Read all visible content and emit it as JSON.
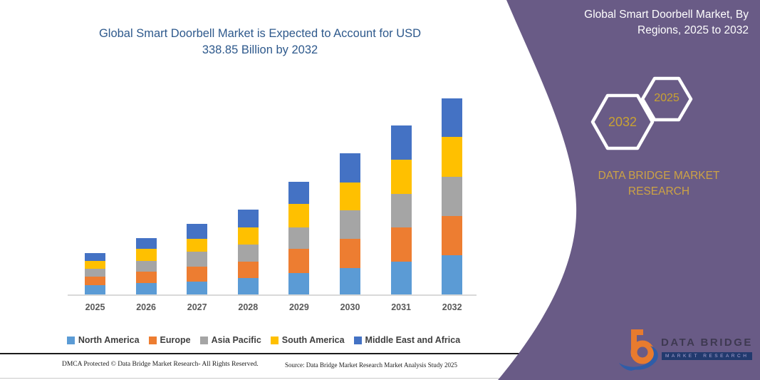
{
  "left": {
    "title_line1": "Global Smart Doorbell Market is Expected to Account for USD",
    "title_line2": "338.85 Billion by 2032",
    "footer_dmca": "DMCA Protected © Data Bridge Market Research-  All Rights Reserved.",
    "footer_source": "Source: Data Bridge Market Research  Market Analysis Study 2025"
  },
  "right_panel": {
    "title_line1": "Global Smart Doorbell Market, By",
    "title_line2": "Regions, 2025 to 2032",
    "hexagons": [
      {
        "label": "2032"
      },
      {
        "label": "2025"
      }
    ],
    "brand_line1": "DATA BRIDGE MARKET",
    "brand_line2": "RESEARCH",
    "logo_name": "DATA BRIDGE",
    "logo_sub": "MARKET RESEARCH",
    "colors": {
      "panel": "#695B86",
      "gold": "#C9A232",
      "title": "#FFFFFF"
    }
  },
  "chart_data": {
    "type": "bar",
    "stacked": true,
    "title": "Global Smart Doorbell Market is Expected to Account for USD 338.85 Billion by 2032",
    "unit": "USD Billion",
    "categories": [
      "2025",
      "2026",
      "2027",
      "2028",
      "2029",
      "2030",
      "2031",
      "2032"
    ],
    "series": [
      {
        "name": "North America",
        "color": "#5B9BD5",
        "values": [
          17.2,
          20.9,
          23.3,
          29.5,
          38.1,
          46.7,
          57.7,
          68.8
        ]
      },
      {
        "name": "Europe",
        "color": "#ED7D31",
        "values": [
          14.7,
          19.6,
          25.8,
          28.2,
          41.7,
          50.3,
          58.9,
          67.5
        ]
      },
      {
        "name": "Asia Pacific",
        "color": "#A5A5A5",
        "values": [
          13.5,
          18.4,
          25.8,
          29.5,
          36.8,
          49.1,
          57.7,
          67.5
        ]
      },
      {
        "name": "South America",
        "color": "#FFC000",
        "values": [
          13.5,
          20.9,
          22.1,
          29.5,
          40.5,
          47.9,
          58.9,
          68.8
        ]
      },
      {
        "name": "Middle East and Africa",
        "color": "#4472C4",
        "values": [
          13.5,
          18.4,
          25.8,
          30.7,
          38.1,
          50.3,
          58.9,
          66.3
        ]
      }
    ],
    "totals": [
      72.4,
      98.2,
      122.8,
      147.4,
      195.2,
      244.3,
      292.1,
      338.85
    ],
    "xlabel": "",
    "ylabel": "",
    "ylim": [
      0,
      360
    ],
    "grid": false,
    "y_axis_shown": false,
    "legend_position": "bottom"
  }
}
